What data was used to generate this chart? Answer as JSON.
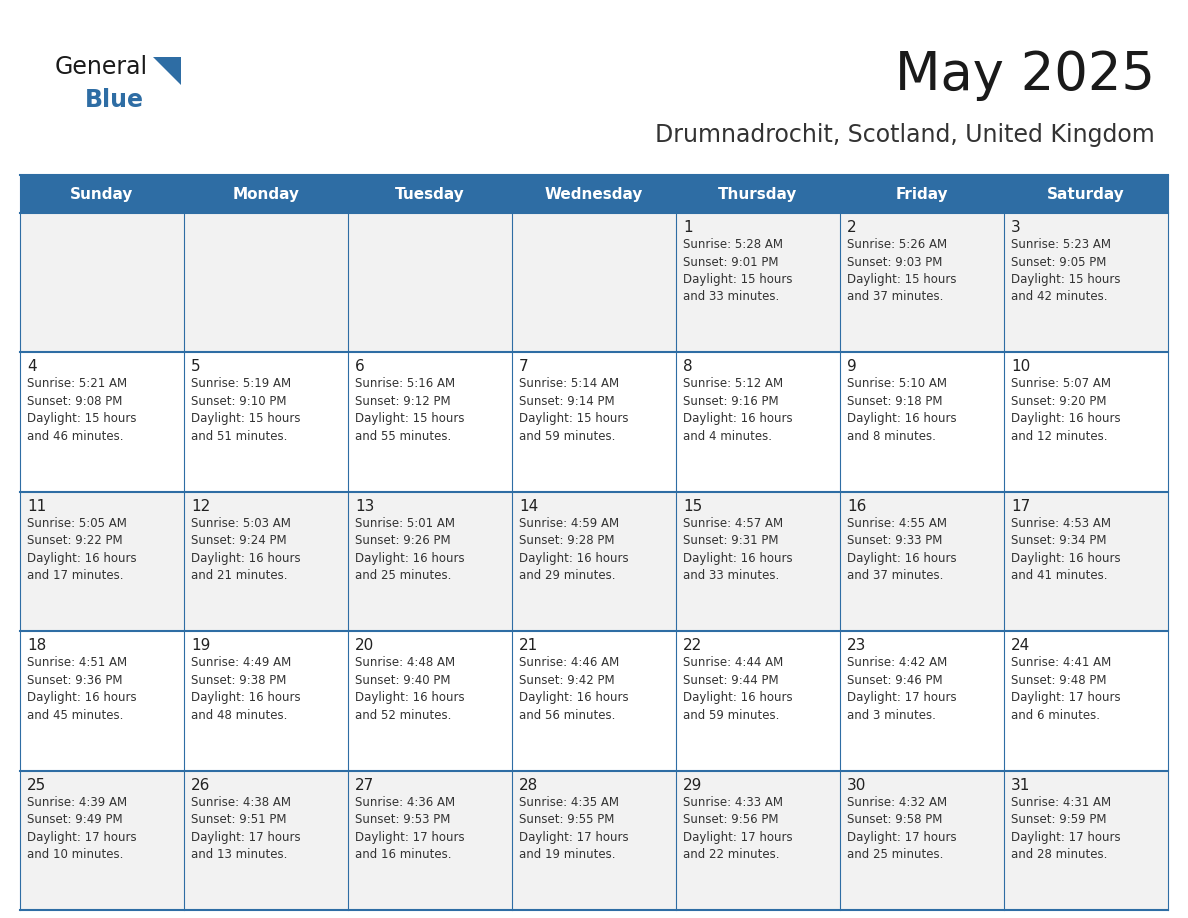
{
  "title": "May 2025",
  "subtitle": "Drumnadrochit, Scotland, United Kingdom",
  "header_bg": "#2E6DA4",
  "header_text_color": "#FFFFFF",
  "text_color": "#333333",
  "days_of_week": [
    "Sunday",
    "Monday",
    "Tuesday",
    "Wednesday",
    "Thursday",
    "Friday",
    "Saturday"
  ],
  "weeks": [
    [
      {
        "day": "",
        "sunrise": "",
        "sunset": "",
        "daylight": ""
      },
      {
        "day": "",
        "sunrise": "",
        "sunset": "",
        "daylight": ""
      },
      {
        "day": "",
        "sunrise": "",
        "sunset": "",
        "daylight": ""
      },
      {
        "day": "",
        "sunrise": "",
        "sunset": "",
        "daylight": ""
      },
      {
        "day": "1",
        "sunrise": "5:28 AM",
        "sunset": "9:01 PM",
        "daylight": "15 hours\nand 33 minutes."
      },
      {
        "day": "2",
        "sunrise": "5:26 AM",
        "sunset": "9:03 PM",
        "daylight": "15 hours\nand 37 minutes."
      },
      {
        "day": "3",
        "sunrise": "5:23 AM",
        "sunset": "9:05 PM",
        "daylight": "15 hours\nand 42 minutes."
      }
    ],
    [
      {
        "day": "4",
        "sunrise": "5:21 AM",
        "sunset": "9:08 PM",
        "daylight": "15 hours\nand 46 minutes."
      },
      {
        "day": "5",
        "sunrise": "5:19 AM",
        "sunset": "9:10 PM",
        "daylight": "15 hours\nand 51 minutes."
      },
      {
        "day": "6",
        "sunrise": "5:16 AM",
        "sunset": "9:12 PM",
        "daylight": "15 hours\nand 55 minutes."
      },
      {
        "day": "7",
        "sunrise": "5:14 AM",
        "sunset": "9:14 PM",
        "daylight": "15 hours\nand 59 minutes."
      },
      {
        "day": "8",
        "sunrise": "5:12 AM",
        "sunset": "9:16 PM",
        "daylight": "16 hours\nand 4 minutes."
      },
      {
        "day": "9",
        "sunrise": "5:10 AM",
        "sunset": "9:18 PM",
        "daylight": "16 hours\nand 8 minutes."
      },
      {
        "day": "10",
        "sunrise": "5:07 AM",
        "sunset": "9:20 PM",
        "daylight": "16 hours\nand 12 minutes."
      }
    ],
    [
      {
        "day": "11",
        "sunrise": "5:05 AM",
        "sunset": "9:22 PM",
        "daylight": "16 hours\nand 17 minutes."
      },
      {
        "day": "12",
        "sunrise": "5:03 AM",
        "sunset": "9:24 PM",
        "daylight": "16 hours\nand 21 minutes."
      },
      {
        "day": "13",
        "sunrise": "5:01 AM",
        "sunset": "9:26 PM",
        "daylight": "16 hours\nand 25 minutes."
      },
      {
        "day": "14",
        "sunrise": "4:59 AM",
        "sunset": "9:28 PM",
        "daylight": "16 hours\nand 29 minutes."
      },
      {
        "day": "15",
        "sunrise": "4:57 AM",
        "sunset": "9:31 PM",
        "daylight": "16 hours\nand 33 minutes."
      },
      {
        "day": "16",
        "sunrise": "4:55 AM",
        "sunset": "9:33 PM",
        "daylight": "16 hours\nand 37 minutes."
      },
      {
        "day": "17",
        "sunrise": "4:53 AM",
        "sunset": "9:34 PM",
        "daylight": "16 hours\nand 41 minutes."
      }
    ],
    [
      {
        "day": "18",
        "sunrise": "4:51 AM",
        "sunset": "9:36 PM",
        "daylight": "16 hours\nand 45 minutes."
      },
      {
        "day": "19",
        "sunrise": "4:49 AM",
        "sunset": "9:38 PM",
        "daylight": "16 hours\nand 48 minutes."
      },
      {
        "day": "20",
        "sunrise": "4:48 AM",
        "sunset": "9:40 PM",
        "daylight": "16 hours\nand 52 minutes."
      },
      {
        "day": "21",
        "sunrise": "4:46 AM",
        "sunset": "9:42 PM",
        "daylight": "16 hours\nand 56 minutes."
      },
      {
        "day": "22",
        "sunrise": "4:44 AM",
        "sunset": "9:44 PM",
        "daylight": "16 hours\nand 59 minutes."
      },
      {
        "day": "23",
        "sunrise": "4:42 AM",
        "sunset": "9:46 PM",
        "daylight": "17 hours\nand 3 minutes."
      },
      {
        "day": "24",
        "sunrise": "4:41 AM",
        "sunset": "9:48 PM",
        "daylight": "17 hours\nand 6 minutes."
      }
    ],
    [
      {
        "day": "25",
        "sunrise": "4:39 AM",
        "sunset": "9:49 PM",
        "daylight": "17 hours\nand 10 minutes."
      },
      {
        "day": "26",
        "sunrise": "4:38 AM",
        "sunset": "9:51 PM",
        "daylight": "17 hours\nand 13 minutes."
      },
      {
        "day": "27",
        "sunrise": "4:36 AM",
        "sunset": "9:53 PM",
        "daylight": "17 hours\nand 16 minutes."
      },
      {
        "day": "28",
        "sunrise": "4:35 AM",
        "sunset": "9:55 PM",
        "daylight": "17 hours\nand 19 minutes."
      },
      {
        "day": "29",
        "sunrise": "4:33 AM",
        "sunset": "9:56 PM",
        "daylight": "17 hours\nand 22 minutes."
      },
      {
        "day": "30",
        "sunrise": "4:32 AM",
        "sunset": "9:58 PM",
        "daylight": "17 hours\nand 25 minutes."
      },
      {
        "day": "31",
        "sunrise": "4:31 AM",
        "sunset": "9:59 PM",
        "daylight": "17 hours\nand 28 minutes."
      }
    ]
  ]
}
